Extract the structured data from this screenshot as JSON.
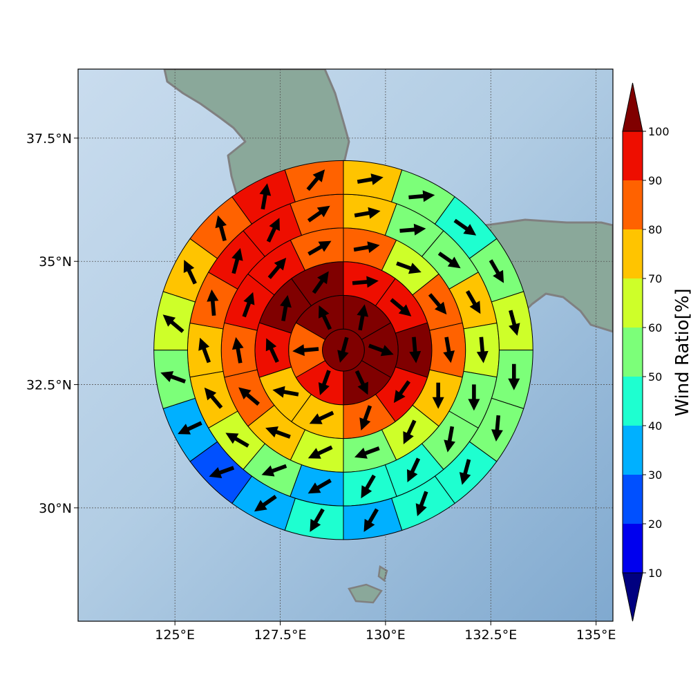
{
  "map": {
    "lon_range": [
      122.7,
      135.4
    ],
    "lat_range": [
      27.7,
      38.9
    ],
    "lon_ticks": [
      {
        "value": 125,
        "label": "125°E"
      },
      {
        "value": 127.5,
        "label": "127.5°E"
      },
      {
        "value": 130,
        "label": "130°E"
      },
      {
        "value": 132.5,
        "label": "132.5°E"
      },
      {
        "value": 135,
        "label": "135°E"
      }
    ],
    "lat_ticks": [
      {
        "value": 30,
        "label": "30°N"
      },
      {
        "value": 32.5,
        "label": "32.5°N"
      },
      {
        "value": 35,
        "label": "35°N"
      },
      {
        "value": 37.5,
        "label": "37.5°N"
      }
    ],
    "gridlines": true,
    "colors": {
      "sea": "#a9c7e2",
      "land": "#8aa89a",
      "coast": "#808080"
    }
  },
  "colorbar": {
    "label": "Wind Ratio[%]",
    "ticks": [
      "10",
      "20",
      "30",
      "40",
      "50",
      "60",
      "70",
      "80",
      "90",
      "100"
    ],
    "colors": [
      "#000080",
      "#0000ee",
      "#0050ff",
      "#00b0ff",
      "#1effd0",
      "#7cff79",
      "#ceff29",
      "#ffc400",
      "#ff6200",
      "#ee0e00",
      "#800000"
    ],
    "extend": "both"
  },
  "wind_rose": {
    "center": {
      "lon": 129.0,
      "lat": 33.2
    },
    "ring_edges_deg": [
      0.5,
      1.3,
      2.1,
      2.9,
      3.7,
      4.5
    ],
    "sector_offsets_deg": [
      0,
      0,
      0,
      0,
      0
    ],
    "ratio_levels": [
      0,
      10,
      20,
      30,
      40,
      50,
      60,
      70,
      80,
      90,
      100
    ],
    "cells": [
      [
        {
          "ratio": 100,
          "wind_to_deg": 195
        }
      ],
      [
        {
          "ratio": 100,
          "wind_to_deg": 10
        },
        {
          "ratio": 100,
          "wind_to_deg": 110
        },
        {
          "ratio": 100,
          "wind_to_deg": 155
        },
        {
          "ratio": 95,
          "wind_to_deg": 200
        },
        {
          "ratio": 85,
          "wind_to_deg": 265
        },
        {
          "ratio": 100,
          "wind_to_deg": 335
        }
      ],
      [
        {
          "ratio": 95,
          "wind_to_deg": 85
        },
        {
          "ratio": 95,
          "wind_to_deg": 130
        },
        {
          "ratio": 100,
          "wind_to_deg": 175
        },
        {
          "ratio": 95,
          "wind_to_deg": 215
        },
        {
          "ratio": 85,
          "wind_to_deg": 200
        },
        {
          "ratio": 75,
          "wind_to_deg": 245
        },
        {
          "ratio": 75,
          "wind_to_deg": 280
        },
        {
          "ratio": 95,
          "wind_to_deg": 335
        },
        {
          "ratio": 100,
          "wind_to_deg": 10
        },
        {
          "ratio": 100,
          "wind_to_deg": 35
        }
      ],
      [
        {
          "ratio": 85,
          "wind_to_deg": 80
        },
        {
          "ratio": 65,
          "wind_to_deg": 110
        },
        {
          "ratio": 85,
          "wind_to_deg": 140
        },
        {
          "ratio": 85,
          "wind_to_deg": 170
        },
        {
          "ratio": 75,
          "wind_to_deg": 180
        },
        {
          "ratio": 65,
          "wind_to_deg": 205
        },
        {
          "ratio": 55,
          "wind_to_deg": 250
        },
        {
          "ratio": 65,
          "wind_to_deg": 245
        },
        {
          "ratio": 75,
          "wind_to_deg": 290
        },
        {
          "ratio": 85,
          "wind_to_deg": 310
        },
        {
          "ratio": 85,
          "wind_to_deg": 350
        },
        {
          "ratio": 95,
          "wind_to_deg": 20
        },
        {
          "ratio": 95,
          "wind_to_deg": 40
        },
        {
          "ratio": 85,
          "wind_to_deg": 60
        }
      ],
      [
        {
          "ratio": 75,
          "wind_to_deg": 80
        },
        {
          "ratio": 55,
          "wind_to_deg": 85
        },
        {
          "ratio": 55,
          "wind_to_deg": 125
        },
        {
          "ratio": 75,
          "wind_to_deg": 150
        },
        {
          "ratio": 65,
          "wind_to_deg": 175
        },
        {
          "ratio": 55,
          "wind_to_deg": 180
        },
        {
          "ratio": 55,
          "wind_to_deg": 190
        },
        {
          "ratio": 45,
          "wind_to_deg": 205
        },
        {
          "ratio": 45,
          "wind_to_deg": 210
        },
        {
          "ratio": 35,
          "wind_to_deg": 240
        },
        {
          "ratio": 55,
          "wind_to_deg": 250
        },
        {
          "ratio": 65,
          "wind_to_deg": 300
        },
        {
          "ratio": 75,
          "wind_to_deg": 320
        },
        {
          "ratio": 75,
          "wind_to_deg": 340
        },
        {
          "ratio": 85,
          "wind_to_deg": 355
        },
        {
          "ratio": 95,
          "wind_to_deg": 15
        },
        {
          "ratio": 95,
          "wind_to_deg": 25
        },
        {
          "ratio": 85,
          "wind_to_deg": 55
        }
      ],
      [
        {
          "ratio": 75,
          "wind_to_deg": 80
        },
        {
          "ratio": 55,
          "wind_to_deg": 85
        },
        {
          "ratio": 45,
          "wind_to_deg": 125
        },
        {
          "ratio": 55,
          "wind_to_deg": 150
        },
        {
          "ratio": 65,
          "wind_to_deg": 165
        },
        {
          "ratio": 55,
          "wind_to_deg": 180
        },
        {
          "ratio": 55,
          "wind_to_deg": 185
        },
        {
          "ratio": 45,
          "wind_to_deg": 195
        },
        {
          "ratio": 45,
          "wind_to_deg": 200
        },
        {
          "ratio": 35,
          "wind_to_deg": 210
        },
        {
          "ratio": 45,
          "wind_to_deg": 210
        },
        {
          "ratio": 35,
          "wind_to_deg": 235
        },
        {
          "ratio": 25,
          "wind_to_deg": 250
        },
        {
          "ratio": 35,
          "wind_to_deg": 245
        },
        {
          "ratio": 55,
          "wind_to_deg": 290
        },
        {
          "ratio": 65,
          "wind_to_deg": 310
        },
        {
          "ratio": 75,
          "wind_to_deg": 335
        },
        {
          "ratio": 85,
          "wind_to_deg": 345
        },
        {
          "ratio": 95,
          "wind_to_deg": 10
        },
        {
          "ratio": 85,
          "wind_to_deg": 40
        }
      ]
    ]
  }
}
